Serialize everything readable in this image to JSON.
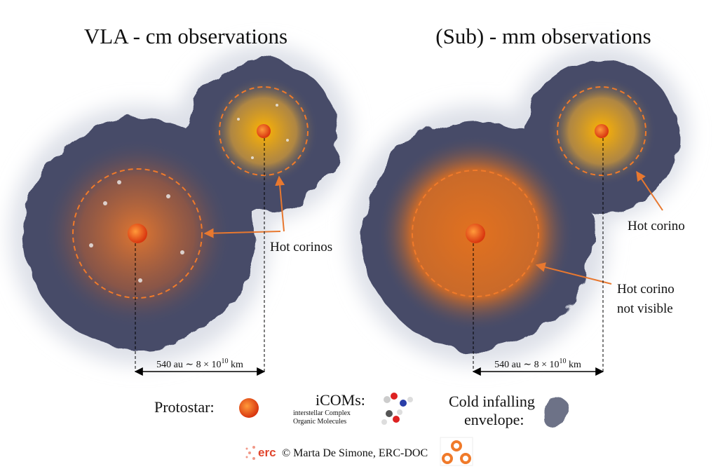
{
  "panels": [
    {
      "title": "VLA - cm observations",
      "callouts": [
        {
          "lines": [
            "Hot corinos"
          ]
        }
      ],
      "scale": {
        "text": "540 au ∼ 8 × 10",
        "exponent": "10",
        "unit": "km"
      }
    },
    {
      "title": "(Sub) - mm observations",
      "callouts": [
        {
          "lines": [
            "Hot corino"
          ]
        },
        {
          "lines": [
            "Hot corino",
            "not visible"
          ]
        }
      ],
      "scale": {
        "text": "540 au ∼ 8 × 10",
        "exponent": "10",
        "unit": "km"
      }
    }
  ],
  "legend": {
    "protostar": "Protostar:",
    "icoms": "iCOMs:",
    "icoms_note": [
      "interstellar Complex",
      "Organic Molecules"
    ],
    "envelope": [
      "Cold infalling",
      "envelope:"
    ]
  },
  "footer": {
    "logo": "erc",
    "credit": "© Marta De Simone, ERC-DOC"
  }
}
